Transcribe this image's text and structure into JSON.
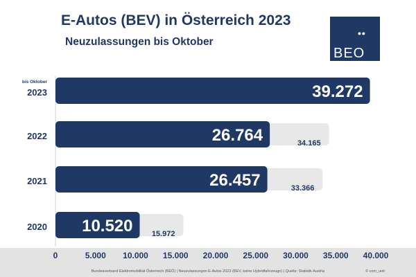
{
  "chart_data": {
    "type": "bar",
    "orientation": "horizontal",
    "title": "E-Autos (BEV) in Österreich 2023",
    "subtitle": "Neuzulassungen bis Oktober",
    "categories": [
      "2023",
      "2022",
      "2021",
      "2020"
    ],
    "category_note": {
      "2023": "bis Oktober"
    },
    "series": [
      {
        "name": "",
        "values": [
          39272,
          26764,
          26457,
          10520
        ],
        "labels": [
          "39.272",
          "26.764",
          "26.457",
          "10.520"
        ]
      },
      {
        "name": "",
        "values": [
          null,
          34165,
          33366,
          15972
        ],
        "labels": [
          "",
          "34.165",
          "33.366",
          "15.972"
        ]
      }
    ],
    "xlim": [
      0,
      40000
    ],
    "xticks": [
      0,
      5000,
      10000,
      15000,
      20000,
      25000,
      30000,
      35000,
      40000
    ],
    "xtick_labels": [
      "0",
      "5.000",
      "10.000",
      "15.000",
      "20.000",
      "25.000",
      "30.000",
      "35.000",
      "40.000"
    ],
    "grid": false,
    "colors": {
      "primary": "#1f3864",
      "secondary": "#e8e8e8",
      "text": "#1f3864"
    }
  },
  "logo": {
    "dots": "••",
    "text": "BEO"
  },
  "footer": {
    "source": "Bundesverband Elektromobilität Österreich (BEÖ) | Neuzulassungen E-Autos 2023 (BEV, keine Hybridfahrzeuge) | Quelle: Statistik Austria",
    "copyright": "© com_unit"
  }
}
